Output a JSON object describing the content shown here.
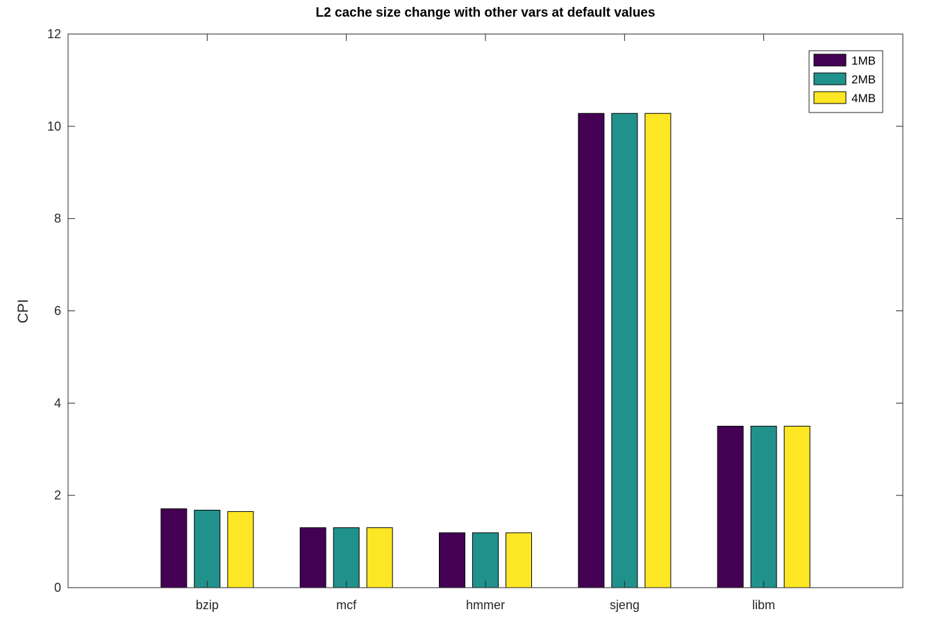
{
  "chart_data": {
    "type": "bar",
    "title": "L2 cache size change with other vars at default values",
    "xlabel": "",
    "ylabel": "CPI",
    "ylim": [
      0,
      12
    ],
    "yticks": [
      0,
      2,
      4,
      6,
      8,
      10,
      12
    ],
    "grid": false,
    "legend_position": "top-right",
    "categories": [
      "bzip",
      "mcf",
      "hmmer",
      "sjeng",
      "libm"
    ],
    "series": [
      {
        "name": "1MB",
        "color": "#440154",
        "values": [
          1.71,
          1.3,
          1.19,
          10.28,
          3.5
        ]
      },
      {
        "name": "2MB",
        "color": "#21918c",
        "values": [
          1.68,
          1.3,
          1.19,
          10.28,
          3.5
        ]
      },
      {
        "name": "4MB",
        "color": "#fde725",
        "values": [
          1.65,
          1.3,
          1.19,
          10.28,
          3.5
        ]
      }
    ]
  }
}
